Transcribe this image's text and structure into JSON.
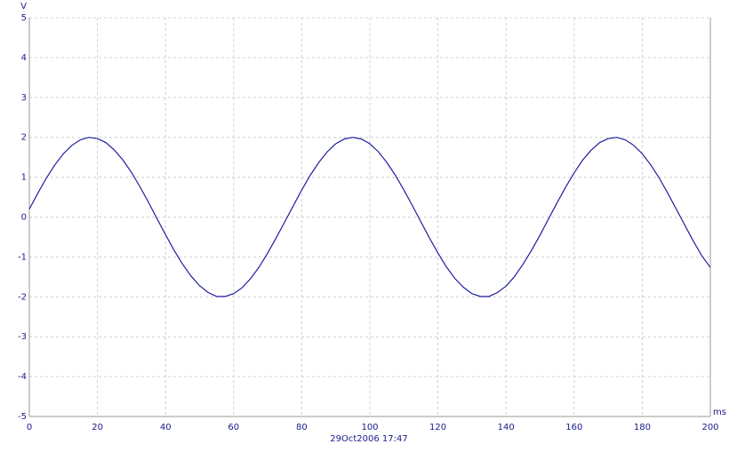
{
  "chart_data": {
    "type": "line",
    "y_label": "V",
    "x_label": "ms",
    "footer": "29Oct2006  17:47",
    "x": [
      0,
      2.5,
      5,
      7.5,
      10,
      12.5,
      15,
      17.5,
      20,
      22.5,
      25,
      27.5,
      30,
      32.5,
      35,
      37.5,
      40,
      42.5,
      45,
      47.5,
      50,
      52.5,
      55,
      57.5,
      60,
      62.5,
      65,
      67.5,
      70,
      72.5,
      75,
      77.5,
      80,
      82.5,
      85,
      87.5,
      90,
      92.5,
      95,
      97.5,
      100,
      102.5,
      105,
      107.5,
      110,
      112.5,
      115,
      117.5,
      120,
      122.5,
      125,
      127.5,
      130,
      132.5,
      135,
      137.5,
      140,
      142.5,
      145,
      147.5,
      150,
      152.5,
      155,
      157.5,
      160,
      162.5,
      165,
      167.5,
      170,
      172.5,
      175,
      177.5,
      180,
      182.5,
      185,
      187.5,
      190,
      192.5,
      195,
      197.5,
      200
    ],
    "series": [
      {
        "color": "#1f1f9f",
        "values": [
          0.2,
          0.6,
          0.98,
          1.31,
          1.59,
          1.8,
          1.94,
          2.0,
          1.97,
          1.87,
          1.68,
          1.43,
          1.12,
          0.76,
          0.37,
          -0.04,
          -0.44,
          -0.83,
          -1.18,
          -1.48,
          -1.72,
          -1.89,
          -1.99,
          -1.99,
          -1.92,
          -1.77,
          -1.54,
          -1.25,
          -0.9,
          -0.52,
          -0.12,
          0.28,
          0.68,
          1.05,
          1.37,
          1.64,
          1.84,
          1.96,
          2.0,
          1.96,
          1.84,
          1.64,
          1.37,
          1.05,
          0.68,
          0.29,
          -0.12,
          -0.52,
          -0.9,
          -1.25,
          -1.54,
          -1.76,
          -1.92,
          -1.99,
          -1.99,
          -1.89,
          -1.73,
          -1.49,
          -1.18,
          -0.83,
          -0.45,
          -0.04,
          0.36,
          0.75,
          1.11,
          1.43,
          1.68,
          1.87,
          1.97,
          2.0,
          1.94,
          1.8,
          1.59,
          1.31,
          0.98,
          0.6,
          0.2,
          -0.2,
          -0.6,
          -0.97,
          -1.26
        ]
      }
    ],
    "xlim": [
      0,
      200
    ],
    "xticks": [
      0,
      20,
      40,
      60,
      80,
      100,
      120,
      140,
      160,
      180,
      200
    ],
    "ylim": [
      -5,
      5
    ],
    "yticks": [
      -5,
      -4,
      -3,
      -2,
      -1,
      0,
      1,
      2,
      3,
      4,
      5
    ],
    "grid": true
  }
}
